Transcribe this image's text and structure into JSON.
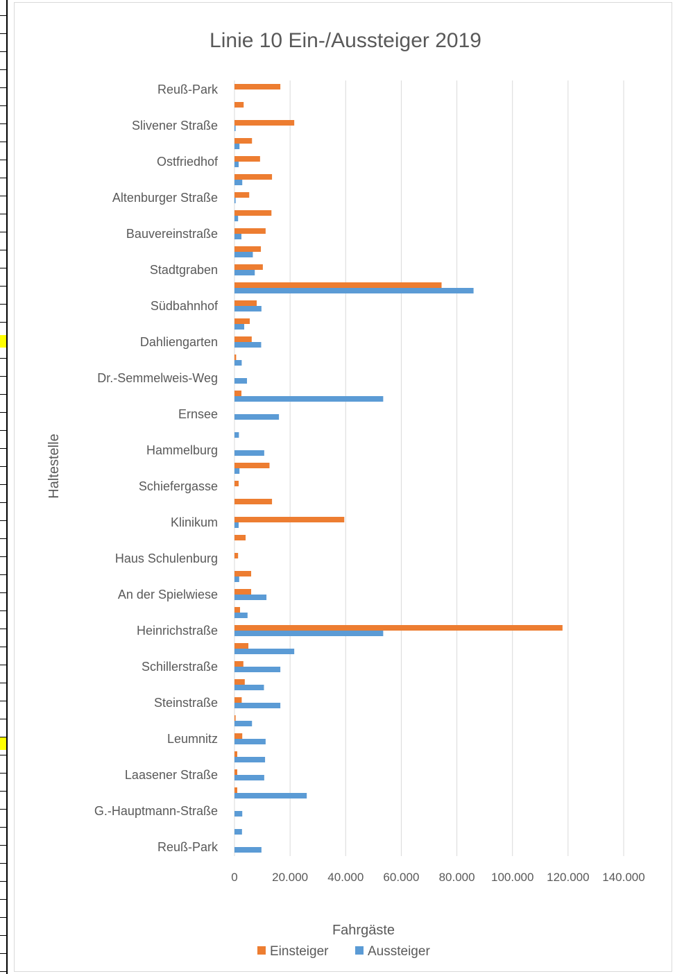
{
  "chart_data": {
    "type": "bar",
    "orientation": "horizontal",
    "title": "Linie 10 Ein-/Aussteiger 2019",
    "xlabel": "Fahrgäste",
    "ylabel": "Haltestelle",
    "xlim": [
      0,
      140000
    ],
    "x_ticks": [
      "0",
      "20.000",
      "40.000",
      "60.000",
      "80.000",
      "100.000",
      "120.000",
      "140.000"
    ],
    "grid": "vertical",
    "legend_position": "bottom",
    "categories": [
      "Reuß-Park",
      "",
      "Slivener Straße",
      "",
      "Ostfriedhof",
      "",
      "Altenburger Straße",
      "",
      "Bauvereinstraße",
      "",
      "Stadtgraben",
      "",
      "Südbahnhof",
      "",
      "Dahliengarten",
      "",
      "Dr.-Semmelweis-Weg",
      "",
      "Ernsee",
      "",
      "Hammelburg",
      "",
      "Schiefergasse",
      "",
      "Klinikum",
      "",
      "Haus Schulenburg",
      "",
      "An der Spielwiese",
      "",
      "Heinrichstraße",
      "",
      "Schillerstraße",
      "",
      "Steinstraße",
      "",
      "Leumnitz",
      "",
      "Laasener Straße",
      "",
      "G.-Hauptmann-Straße",
      "",
      "Reuß-Park"
    ],
    "series": [
      {
        "name": "Einsteiger",
        "color": "#ed7d31",
        "values": [
          16500,
          3300,
          21500,
          6300,
          9200,
          13500,
          5300,
          13300,
          11200,
          9500,
          10200,
          74500,
          8000,
          5500,
          6200,
          600,
          0,
          2500,
          0,
          0,
          0,
          12600,
          1500,
          13500,
          39500,
          4000,
          1300,
          6000,
          6000,
          2000,
          118000,
          5000,
          3200,
          3700,
          2600,
          400,
          2800,
          1000,
          1000,
          1000,
          0,
          0,
          0
        ]
      },
      {
        "name": "Aussteiger",
        "color": "#5b9bd5",
        "values": [
          0,
          0,
          400,
          1800,
          1500,
          2800,
          400,
          1300,
          2500,
          6600,
          7300,
          86000,
          9700,
          3500,
          9600,
          2600,
          4500,
          53500,
          16000,
          1600,
          10700,
          1800,
          0,
          0,
          1500,
          0,
          0,
          1700,
          11500,
          4700,
          53500,
          21500,
          16500,
          10600,
          16500,
          6300,
          11200,
          11000,
          10700,
          26000,
          2800,
          2700,
          9700
        ]
      }
    ]
  }
}
